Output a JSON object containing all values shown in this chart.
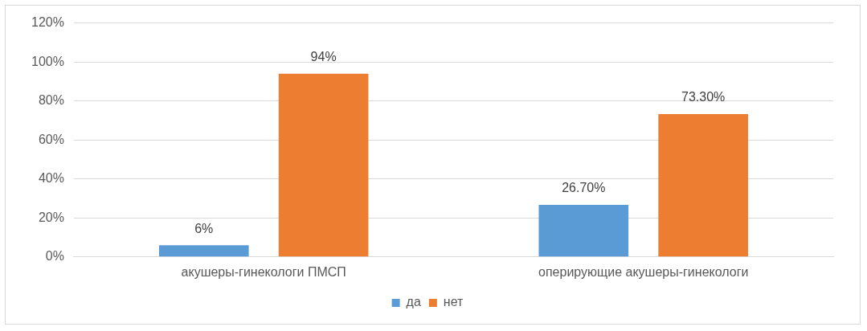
{
  "chart_data": {
    "type": "bar",
    "categories": [
      "акушеры-гинекологи ПМСП",
      "оперирующие акушеры-гинекологи"
    ],
    "series": [
      {
        "name": "да",
        "color": "#5b9bd5",
        "values": [
          6,
          26.7
        ],
        "value_labels": [
          "6%",
          "26.70%"
        ]
      },
      {
        "name": "нет",
        "color": "#ed7d31",
        "values": [
          94,
          73.3
        ],
        "value_labels": [
          "94%",
          "73.30%"
        ]
      }
    ],
    "ylim": [
      0,
      120
    ],
    "yticks": [
      {
        "value": 0,
        "label": "0%"
      },
      {
        "value": 20,
        "label": "20%"
      },
      {
        "value": 40,
        "label": "40%"
      },
      {
        "value": 60,
        "label": "60%"
      },
      {
        "value": 80,
        "label": "80%"
      },
      {
        "value": 100,
        "label": "100%"
      },
      {
        "value": 120,
        "label": "120%"
      }
    ],
    "grid": "y",
    "legend": "bottom"
  }
}
